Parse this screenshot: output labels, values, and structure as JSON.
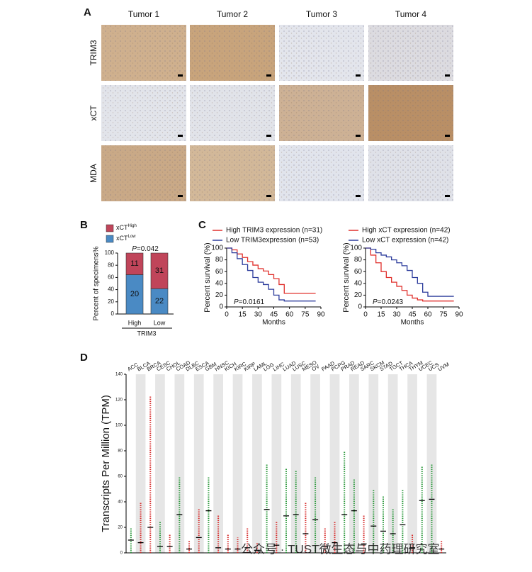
{
  "figure_a": {
    "panel": "A",
    "columns": [
      "Tumor 1",
      "Tumor 2",
      "Tumor 3",
      "Tumor 4"
    ],
    "rows": [
      "TRIM3",
      "xCT",
      "MDA"
    ],
    "image_colors": [
      [
        "#cfb08e",
        "#c8a47c",
        "#e3e5ec",
        "#dcdbe0"
      ],
      [
        "#e2e4ea",
        "#e1e3e9",
        "#cdb195",
        "#b98f66"
      ],
      [
        "#c9a987",
        "#d2b899",
        "#e1e4ec",
        "#dfe1e8"
      ]
    ]
  },
  "chart_data": [
    {
      "type": "bar",
      "panel": "B",
      "stack": "percent",
      "ylabel": "Percent of specimens%",
      "annotation_prefix": "P",
      "annotation": "=0.042",
      "categories": [
        "High",
        "Low"
      ],
      "group_label": "TRIM3",
      "ylim": [
        0,
        100
      ],
      "yticks": [
        0,
        20,
        40,
        60,
        80,
        100
      ],
      "series": [
        {
          "name": "xCT",
          "sup": "Low",
          "color": "#4a8ac4",
          "values": [
            20,
            22
          ]
        },
        {
          "name": "xCT",
          "sup": "High",
          "color": "#c0455a",
          "values": [
            11,
            31
          ]
        }
      ]
    },
    {
      "type": "line",
      "panel": "C",
      "step": true,
      "xlabel": "Months",
      "ylabel": "Percent survival (%)",
      "annotation_prefix": "P",
      "annotation": "=0.0161",
      "xlim": [
        0,
        90
      ],
      "xticks": [
        0,
        15,
        30,
        45,
        60,
        75,
        90
      ],
      "ylim": [
        0,
        100
      ],
      "yticks": [
        0,
        20,
        40,
        60,
        80,
        100
      ],
      "series": [
        {
          "name": "High TRIM3 expression (n=31)",
          "color": "#e0302c",
          "x": [
            0,
            5,
            10,
            15,
            20,
            25,
            30,
            35,
            40,
            45,
            50,
            55,
            60,
            85
          ],
          "values": [
            100,
            97,
            90,
            84,
            77,
            71,
            65,
            61,
            55,
            48,
            38,
            23,
            23,
            23
          ]
        },
        {
          "name": "Low TRIM3expression (n=53)",
          "color": "#2c3c9c",
          "x": [
            0,
            5,
            10,
            15,
            20,
            25,
            30,
            35,
            40,
            45,
            50,
            55,
            85
          ],
          "values": [
            100,
            92,
            82,
            72,
            62,
            50,
            42,
            38,
            30,
            20,
            12,
            10,
            10
          ]
        }
      ]
    },
    {
      "type": "line",
      "step": true,
      "xlabel": "Months",
      "ylabel": "Percent survival (%)",
      "annotation_prefix": "P",
      "annotation": "=0.0243",
      "xlim": [
        0,
        90
      ],
      "xticks": [
        0,
        15,
        30,
        45,
        60,
        75,
        90
      ],
      "ylim": [
        0,
        100
      ],
      "yticks": [
        0,
        20,
        40,
        60,
        80,
        100
      ],
      "series": [
        {
          "name": "High xCT expression (n=42)",
          "color": "#e0302c",
          "x": [
            0,
            5,
            10,
            15,
            20,
            25,
            30,
            35,
            40,
            45,
            50,
            55,
            85
          ],
          "values": [
            100,
            88,
            75,
            60,
            50,
            42,
            35,
            28,
            20,
            15,
            12,
            10,
            10
          ]
        },
        {
          "name": "Low xCT expression (n=42)",
          "color": "#2c3c9c",
          "x": [
            0,
            5,
            10,
            15,
            20,
            25,
            30,
            35,
            40,
            45,
            50,
            55,
            60,
            85
          ],
          "values": [
            100,
            98,
            92,
            88,
            85,
            80,
            75,
            70,
            62,
            50,
            40,
            25,
            18,
            18
          ]
        }
      ]
    },
    {
      "type": "dot",
      "panel": "D",
      "ylabel": "Transcripts Per Million (TPM)",
      "ylim": [
        0,
        140
      ],
      "yticks": [
        0,
        20,
        40,
        60,
        80,
        100,
        120,
        140
      ],
      "categories": [
        "ACC",
        "BLCA",
        "BRCA",
        "CESC",
        "CHOL",
        "COAD",
        "DLBC",
        "ESCA",
        "GBM",
        "HNSC",
        "KICH",
        "KIRC",
        "KIRP",
        "LAML",
        "LGG",
        "LIHC",
        "LUAD",
        "LUSC",
        "MESO",
        "OV",
        "PAAD",
        "PCPG",
        "PRAD",
        "READ",
        "SARC",
        "SKCM",
        "STAD",
        "TGCT",
        "THCA",
        "THYM",
        "UCEC",
        "UCS",
        "UVM"
      ],
      "category_colors": [
        "#3a9a3a",
        "#111111",
        "#111111",
        "#3a9a3a",
        "#111111",
        "#3a9a3a",
        "#111111",
        "#111111",
        "#3a9a3a",
        "#111111",
        "#111111",
        "#111111",
        "#111111",
        "#111111",
        "#3a9a3a",
        "#111111",
        "#3a9a3a",
        "#3a9a3a",
        "#111111",
        "#3a9a3a",
        "#111111",
        "#111111",
        "#3a9a3a",
        "#3a9a3a",
        "#111111",
        "#3a9a3a",
        "#3a9a3a",
        "#3a9a3a",
        "#3a9a3a",
        "#111111",
        "#3a9a3a",
        "#3a9a3a",
        "#111111"
      ],
      "dot_colors": [
        "#2e9a3e",
        "#d83030",
        "#d83030",
        "#2e9a3e",
        "#d83030",
        "#2e9a3e",
        "#d83030",
        "#d83030",
        "#2e9a3e",
        "#d83030",
        "#d83030",
        "#d83030",
        "#d83030",
        "#d83030",
        "#2e9a3e",
        "#d83030",
        "#2e9a3e",
        "#2e9a3e",
        "#d83030",
        "#2e9a3e",
        "#d83030",
        "#d83030",
        "#2e9a3e",
        "#2e9a3e",
        "#d83030",
        "#2e9a3e",
        "#2e9a3e",
        "#2e9a3e",
        "#2e9a3e",
        "#d83030",
        "#2e9a3e",
        "#2e9a3e",
        "#d83030"
      ],
      "values": [
        10,
        8,
        20,
        5,
        5,
        30,
        3,
        12,
        33,
        4,
        3,
        3,
        4,
        2,
        34,
        6,
        29,
        30,
        15,
        26,
        5,
        8,
        30,
        33,
        7,
        21,
        17,
        15,
        22,
        4,
        41,
        42,
        3
      ],
      "max": [
        20,
        40,
        123,
        25,
        15,
        60,
        10,
        35,
        60,
        30,
        15,
        12,
        20,
        8,
        70,
        25,
        66,
        65,
        40,
        60,
        20,
        25,
        80,
        58,
        30,
        50,
        45,
        35,
        50,
        15,
        68,
        70,
        10
      ]
    }
  ],
  "watermark": "公众号 · TUST微生态与中药理研究室"
}
